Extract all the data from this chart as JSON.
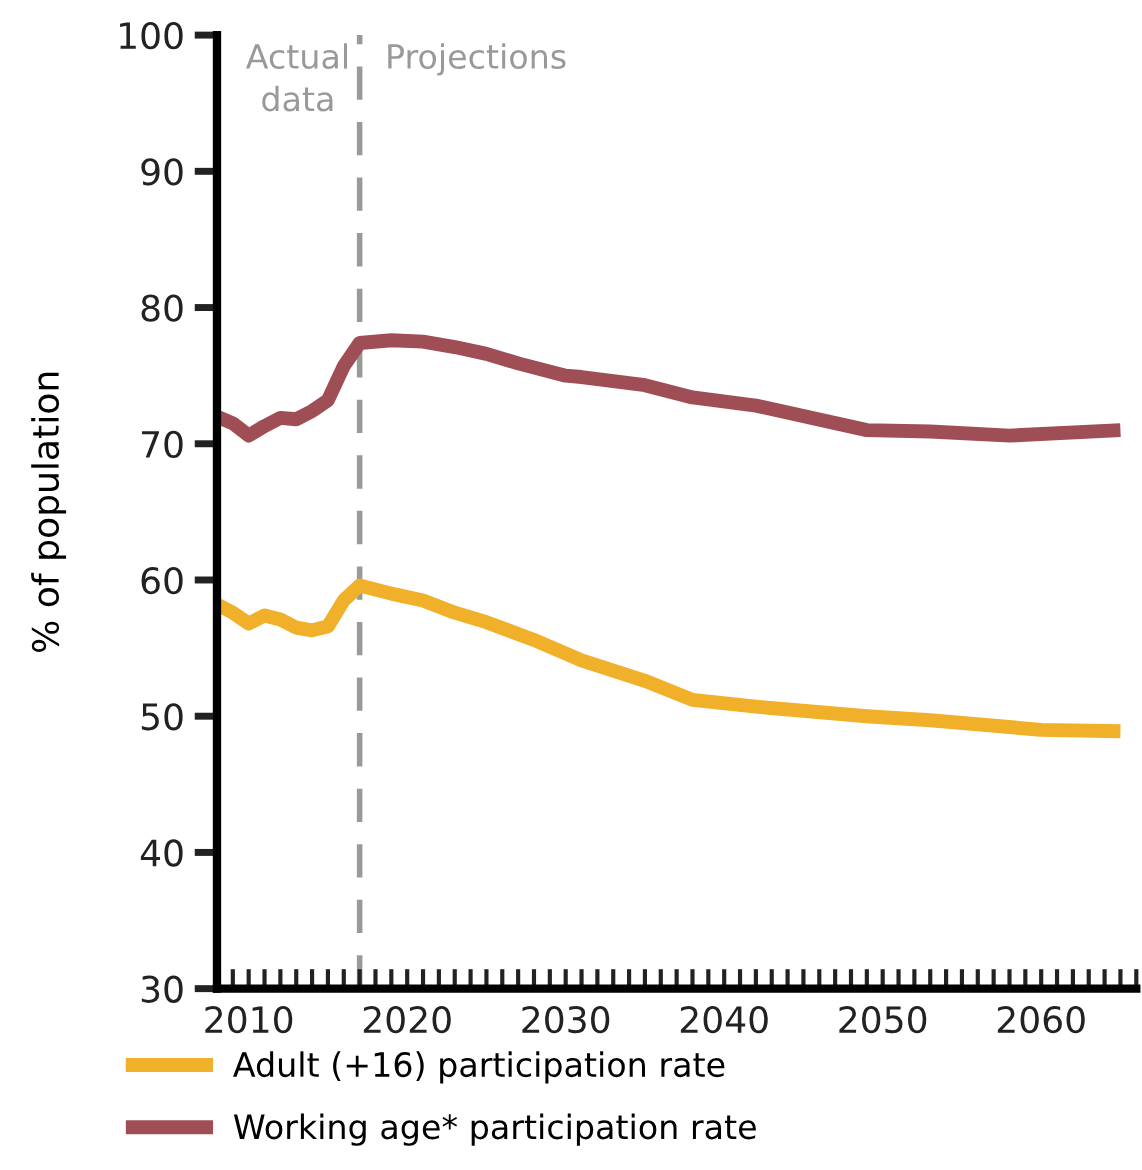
{
  "chart_data": {
    "type": "line",
    "ylabel": "% of population",
    "series": [
      {
        "name": "Adult (+16) participation rate",
        "color": "#f0b02a",
        "x": [
          2008,
          2009,
          2010,
          2011,
          2012,
          2013,
          2014,
          2015,
          2016,
          2017,
          2019,
          2021,
          2023,
          2025,
          2028,
          2031,
          2035,
          2038,
          2042,
          2049,
          2053,
          2060,
          2065
        ],
        "values": [
          58.2,
          57.6,
          56.8,
          57.4,
          57.1,
          56.5,
          56.3,
          56.6,
          58.5,
          59.6,
          59.0,
          58.5,
          57.6,
          56.9,
          55.6,
          54.1,
          52.6,
          51.2,
          50.7,
          50.0,
          49.7,
          49.0,
          48.9
        ]
      },
      {
        "name": "Working age* participation rate",
        "color": "#a04e55",
        "x": [
          2008,
          2009,
          2010,
          2011,
          2012,
          2013,
          2014,
          2015,
          2016,
          2017,
          2019,
          2021,
          2023,
          2025,
          2027,
          2030,
          2031,
          2035,
          2038,
          2042,
          2049,
          2053,
          2058,
          2065
        ],
        "values": [
          72.0,
          71.5,
          70.6,
          71.3,
          71.9,
          71.8,
          72.4,
          73.2,
          75.7,
          77.4,
          77.6,
          77.5,
          77.1,
          76.6,
          75.9,
          75.0,
          74.9,
          74.3,
          73.4,
          72.8,
          71.0,
          70.9,
          70.6,
          71.0
        ]
      }
    ],
    "xlim": [
      2008,
      2066
    ],
    "ylim": [
      30,
      100
    ],
    "xticks": [
      {
        "value": 2008,
        "label": null
      },
      {
        "value": 2009,
        "label": null
      },
      2010,
      {
        "value": 2011,
        "label": null
      },
      {
        "value": 2012,
        "label": null
      },
      {
        "value": 2013,
        "label": null
      },
      {
        "value": 2014,
        "label": null
      },
      {
        "value": 2015,
        "label": null
      },
      {
        "value": 2016,
        "label": null
      },
      {
        "value": 2017,
        "label": null
      },
      {
        "value": 2018,
        "label": null
      },
      {
        "value": 2019,
        "label": null
      },
      2020,
      {
        "value": 2021,
        "label": null
      },
      {
        "value": 2022,
        "label": null
      },
      {
        "value": 2023,
        "label": null
      },
      {
        "value": 2024,
        "label": null
      },
      {
        "value": 2025,
        "label": null
      },
      {
        "value": 2026,
        "label": null
      },
      {
        "value": 2027,
        "label": null
      },
      {
        "value": 2028,
        "label": null
      },
      {
        "value": 2029,
        "label": null
      },
      2030,
      {
        "value": 2031,
        "label": null
      },
      {
        "value": 2032,
        "label": null
      },
      {
        "value": 2033,
        "label": null
      },
      {
        "value": 2034,
        "label": null
      },
      {
        "value": 2035,
        "label": null
      },
      {
        "value": 2036,
        "label": null
      },
      {
        "value": 2037,
        "label": null
      },
      {
        "value": 2038,
        "label": null
      },
      {
        "value": 2039,
        "label": null
      },
      2040,
      {
        "value": 2041,
        "label": null
      },
      {
        "value": 2042,
        "label": null
      },
      {
        "value": 2043,
        "label": null
      },
      {
        "value": 2044,
        "label": null
      },
      {
        "value": 2045,
        "label": null
      },
      {
        "value": 2046,
        "label": null
      },
      {
        "value": 2047,
        "label": null
      },
      {
        "value": 2048,
        "label": null
      },
      {
        "value": 2049,
        "label": null
      },
      2050,
      {
        "value": 2051,
        "label": null
      },
      {
        "value": 2052,
        "label": null
      },
      {
        "value": 2053,
        "label": null
      },
      {
        "value": 2054,
        "label": null
      },
      {
        "value": 2055,
        "label": null
      },
      {
        "value": 2056,
        "label": null
      },
      {
        "value": 2057,
        "label": null
      },
      {
        "value": 2058,
        "label": null
      },
      {
        "value": 2059,
        "label": null
      },
      2060,
      {
        "value": 2061,
        "label": null
      },
      {
        "value": 2062,
        "label": null
      },
      {
        "value": 2063,
        "label": null
      },
      {
        "value": 2064,
        "label": null
      },
      {
        "value": 2065,
        "label": null
      },
      {
        "value": 2066,
        "label": null
      }
    ],
    "yticks": [
      30,
      40,
      50,
      60,
      70,
      80,
      90,
      100
    ],
    "ref_lines": [
      {
        "axis": "x",
        "value": 2017,
        "color": "#999999",
        "line_style": "dashed"
      }
    ],
    "annotations": [
      "Actual\ndata",
      "Projections"
    ],
    "grid": false,
    "legend": "bottom",
    "marker": "none",
    "line_style": "solid"
  }
}
